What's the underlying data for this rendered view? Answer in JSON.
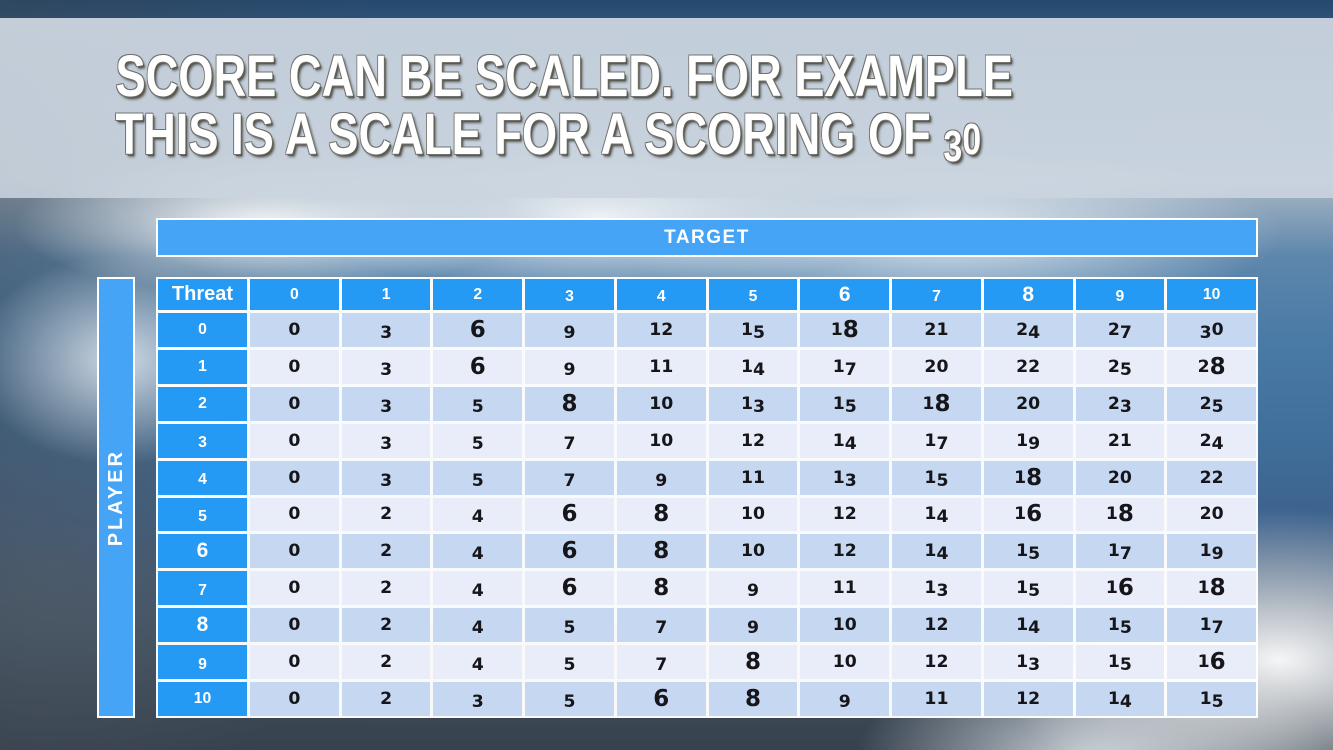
{
  "slide": {
    "title_line1": "SCORE CAN BE SCALED. FOR EXAMPLE",
    "title_line2": "THIS IS A SCALE FOR A SCORING OF 30"
  },
  "table": {
    "target_label": "TARGET",
    "player_label": "PLAYER",
    "corner_label": "Threat",
    "column_headers": [
      "0",
      "1",
      "2",
      "3",
      "4",
      "5",
      "6",
      "7",
      "8",
      "9",
      "10"
    ],
    "row_headers": [
      "0",
      "1",
      "2",
      "3",
      "4",
      "5",
      "6",
      "7",
      "8",
      "9",
      "10"
    ],
    "rows": [
      [
        0,
        3,
        6,
        9,
        12,
        15,
        18,
        21,
        24,
        27,
        30
      ],
      [
        0,
        3,
        6,
        9,
        11,
        14,
        17,
        20,
        22,
        25,
        28
      ],
      [
        0,
        3,
        5,
        8,
        10,
        13,
        15,
        18,
        20,
        23,
        25
      ],
      [
        0,
        3,
        5,
        7,
        10,
        12,
        14,
        17,
        19,
        21,
        24
      ],
      [
        0,
        3,
        5,
        7,
        9,
        11,
        13,
        15,
        18,
        20,
        22
      ],
      [
        0,
        2,
        4,
        6,
        8,
        10,
        12,
        14,
        16,
        18,
        20
      ],
      [
        0,
        2,
        4,
        6,
        8,
        10,
        12,
        14,
        15,
        17,
        19
      ],
      [
        0,
        2,
        4,
        6,
        8,
        9,
        11,
        13,
        15,
        16,
        18
      ],
      [
        0,
        2,
        4,
        5,
        7,
        9,
        10,
        12,
        14,
        15,
        17
      ],
      [
        0,
        2,
        4,
        5,
        7,
        8,
        10,
        12,
        13,
        15,
        16
      ],
      [
        0,
        2,
        3,
        5,
        6,
        8,
        9,
        11,
        12,
        14,
        15
      ]
    ]
  },
  "colors": {
    "banner_blue": "#45A4F5",
    "header_blue": "#259AF4",
    "row_band_dark": "#C6D7F2",
    "row_band_light": "#E9EDF9",
    "title_text": "#FFFFFF",
    "body_text": "#16161A"
  }
}
